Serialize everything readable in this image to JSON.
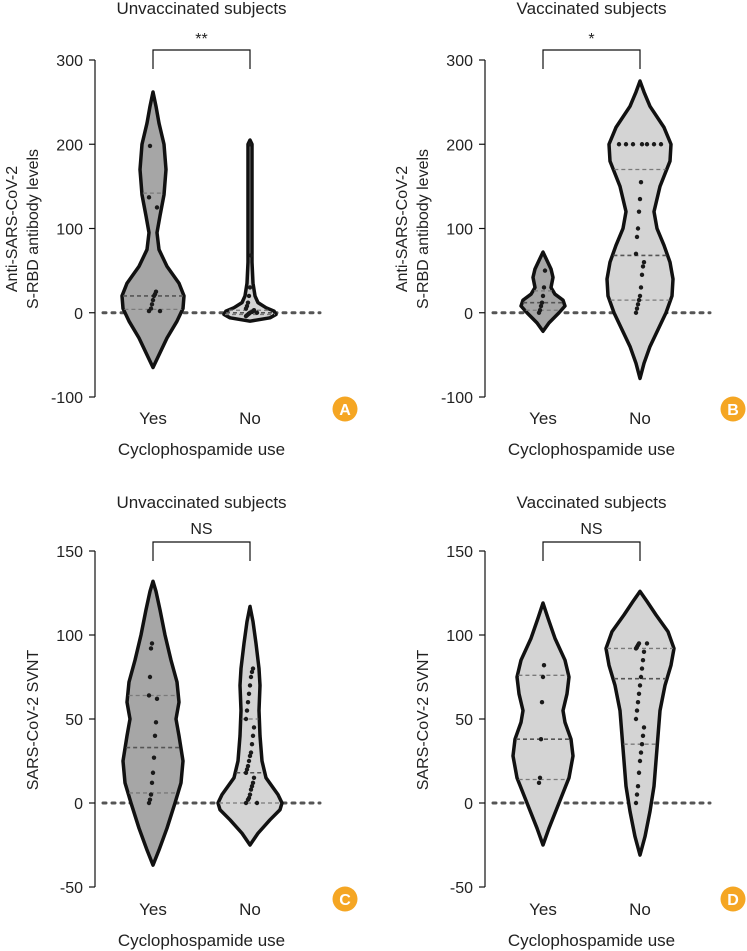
{
  "colors": {
    "dark_violin": "#a6a6a6",
    "light_violin": "#d4d4d4",
    "outline": "#111111",
    "badge": "#f5a623",
    "badge_text": "#ffffff"
  },
  "chart_data": [
    {
      "type": "violin",
      "panel": "A",
      "title": "Unvaccinated subjects",
      "xlabel": "Cyclophospamide use",
      "ylabel_lines": [
        "Anti-SARS-CoV-2",
        "S-RBD antibody levels"
      ],
      "ylim": [
        -100,
        300
      ],
      "yticks": [
        -100,
        0,
        100,
        200,
        300
      ],
      "categories": [
        "Yes",
        "No"
      ],
      "significance": "**",
      "fills": [
        "dark",
        "light"
      ],
      "series": [
        {
          "name": "Yes",
          "min": -65,
          "max": 262,
          "profile": [
            [
              -65,
              0
            ],
            [
              -50,
              6
            ],
            [
              -30,
              14
            ],
            [
              -10,
              24
            ],
            [
              5,
              30
            ],
            [
              20,
              31
            ],
            [
              35,
              26
            ],
            [
              55,
              14
            ],
            [
              75,
              6
            ],
            [
              95,
              4
            ],
            [
              115,
              7
            ],
            [
              140,
              11
            ],
            [
              170,
              13
            ],
            [
              200,
              11
            ],
            [
              225,
              6
            ],
            [
              245,
              3
            ],
            [
              262,
              0
            ]
          ],
          "quartiles": [
            4,
            20,
            142
          ],
          "points": [
            2,
            2,
            5,
            10,
            15,
            20,
            22,
            25,
            125,
            137,
            198
          ]
        },
        {
          "name": "No",
          "min": -10,
          "max": 205,
          "profile": [
            [
              -10,
              0
            ],
            [
              -6,
              20
            ],
            [
              -2,
              26
            ],
            [
              2,
              24
            ],
            [
              6,
              16
            ],
            [
              12,
              8
            ],
            [
              20,
              5
            ],
            [
              35,
              3
            ],
            [
              60,
              2
            ],
            [
              120,
              2
            ],
            [
              200,
              2
            ],
            [
              205,
              0
            ]
          ],
          "quartiles": [
            -2,
            0,
            3
          ],
          "points": [
            -4,
            -3,
            -2,
            -1,
            0,
            0,
            1,
            2,
            3,
            5,
            8,
            12,
            20,
            30,
            68,
            200
          ]
        }
      ]
    },
    {
      "type": "violin",
      "panel": "B",
      "title": "Vaccinated subjects",
      "xlabel": "Cyclophospamide use",
      "ylabel_lines": [
        "Anti-SARS-CoV-2",
        "S-RBD antibody levels"
      ],
      "ylim": [
        -100,
        300
      ],
      "yticks": [
        -100,
        0,
        100,
        200,
        300
      ],
      "categories": [
        "Yes",
        "No"
      ],
      "significance": "*",
      "fills": [
        "dark",
        "light"
      ],
      "series": [
        {
          "name": "Yes",
          "min": -22,
          "max": 72,
          "profile": [
            [
              -22,
              0
            ],
            [
              -12,
              6
            ],
            [
              0,
              16
            ],
            [
              8,
              22
            ],
            [
              15,
              20
            ],
            [
              22,
              12
            ],
            [
              30,
              8
            ],
            [
              42,
              10
            ],
            [
              52,
              8
            ],
            [
              62,
              4
            ],
            [
              72,
              0
            ]
          ],
          "quartiles": [
            3,
            12,
            26
          ],
          "points": [
            0,
            3,
            8,
            12,
            20,
            30,
            50
          ]
        },
        {
          "name": "No",
          "min": -78,
          "max": 275,
          "profile": [
            [
              -78,
              0
            ],
            [
              -60,
              4
            ],
            [
              -40,
              10
            ],
            [
              -20,
              18
            ],
            [
              0,
              26
            ],
            [
              20,
              32
            ],
            [
              40,
              33
            ],
            [
              60,
              30
            ],
            [
              80,
              24
            ],
            [
              100,
              17
            ],
            [
              120,
              14
            ],
            [
              150,
              20
            ],
            [
              180,
              30
            ],
            [
              200,
              31
            ],
            [
              220,
              24
            ],
            [
              245,
              10
            ],
            [
              262,
              4
            ],
            [
              275,
              0
            ]
          ],
          "quartiles": [
            15,
            68,
            170
          ],
          "points": [
            0,
            5,
            10,
            15,
            20,
            30,
            45,
            55,
            60,
            70,
            90,
            100,
            120,
            135,
            155,
            200,
            200,
            200,
            200,
            200,
            200,
            200
          ]
        }
      ]
    },
    {
      "type": "violin",
      "panel": "C",
      "title": "Unvaccinated subjects",
      "xlabel": "Cyclophospamide use",
      "ylabel_lines": [
        "SARS-CoV-2 SVNT"
      ],
      "ylim": [
        -50,
        150
      ],
      "yticks": [
        -50,
        0,
        50,
        100,
        150
      ],
      "categories": [
        "Yes",
        "No"
      ],
      "significance": "NS",
      "fills": [
        "dark",
        "light"
      ],
      "series": [
        {
          "name": "Yes",
          "min": -37,
          "max": 132,
          "profile": [
            [
              -37,
              0
            ],
            [
              -28,
              6
            ],
            [
              -15,
              14
            ],
            [
              0,
              22
            ],
            [
              12,
              28
            ],
            [
              25,
              30
            ],
            [
              40,
              26
            ],
            [
              50,
              23
            ],
            [
              60,
              26
            ],
            [
              72,
              24
            ],
            [
              85,
              18
            ],
            [
              100,
              12
            ],
            [
              115,
              7
            ],
            [
              126,
              3
            ],
            [
              132,
              0
            ]
          ],
          "quartiles": [
            6,
            33,
            64
          ],
          "points": [
            0,
            2,
            5,
            12,
            18,
            27,
            40,
            48,
            62,
            64,
            75,
            92,
            95
          ]
        },
        {
          "name": "No",
          "min": -25,
          "max": 117,
          "profile": [
            [
              -25,
              0
            ],
            [
              -18,
              8
            ],
            [
              -10,
              20
            ],
            [
              -4,
              30
            ],
            [
              0,
              32
            ],
            [
              5,
              28
            ],
            [
              15,
              16
            ],
            [
              25,
              12
            ],
            [
              40,
              10
            ],
            [
              55,
              9
            ],
            [
              70,
              10
            ],
            [
              80,
              9
            ],
            [
              95,
              6
            ],
            [
              108,
              3
            ],
            [
              117,
              0
            ]
          ],
          "quartiles": [
            0,
            18,
            50
          ],
          "points": [
            0,
            0,
            2,
            3,
            5,
            8,
            10,
            12,
            15,
            18,
            20,
            22,
            25,
            28,
            30,
            35,
            40,
            45,
            50,
            55,
            60,
            65,
            70,
            75,
            78,
            80
          ]
        }
      ]
    },
    {
      "type": "violin",
      "panel": "D",
      "title": "Vaccinated subjects",
      "xlabel": "Cyclophospamide use",
      "ylabel_lines": [
        "SARS-CoV-2 SVNT"
      ],
      "ylim": [
        -50,
        150
      ],
      "yticks": [
        -50,
        0,
        50,
        100,
        150
      ],
      "categories": [
        "Yes",
        "No"
      ],
      "significance": "NS",
      "fills": [
        "light",
        "light"
      ],
      "series": [
        {
          "name": "Yes",
          "min": -25,
          "max": 119,
          "profile": [
            [
              -25,
              0
            ],
            [
              -15,
              6
            ],
            [
              0,
              16
            ],
            [
              15,
              26
            ],
            [
              28,
              30
            ],
            [
              38,
              28
            ],
            [
              48,
              22
            ],
            [
              55,
              20
            ],
            [
              65,
              24
            ],
            [
              75,
              26
            ],
            [
              85,
              22
            ],
            [
              98,
              12
            ],
            [
              110,
              5
            ],
            [
              119,
              0
            ]
          ],
          "quartiles": [
            14,
            38,
            76
          ],
          "points": [
            12,
            15,
            38,
            60,
            75,
            82
          ]
        },
        {
          "name": "No",
          "min": -31,
          "max": 126,
          "profile": [
            [
              -31,
              0
            ],
            [
              -20,
              5
            ],
            [
              -5,
              10
            ],
            [
              10,
              14
            ],
            [
              25,
              16
            ],
            [
              40,
              18
            ],
            [
              55,
              20
            ],
            [
              70,
              25
            ],
            [
              82,
              31
            ],
            [
              92,
              34
            ],
            [
              102,
              28
            ],
            [
              112,
              16
            ],
            [
              120,
              7
            ],
            [
              126,
              0
            ]
          ],
          "quartiles": [
            35,
            74,
            92
          ],
          "points": [
            0,
            5,
            10,
            18,
            25,
            30,
            35,
            40,
            45,
            50,
            55,
            60,
            65,
            70,
            75,
            80,
            85,
            90,
            92,
            93,
            94,
            95,
            95
          ]
        }
      ]
    }
  ]
}
